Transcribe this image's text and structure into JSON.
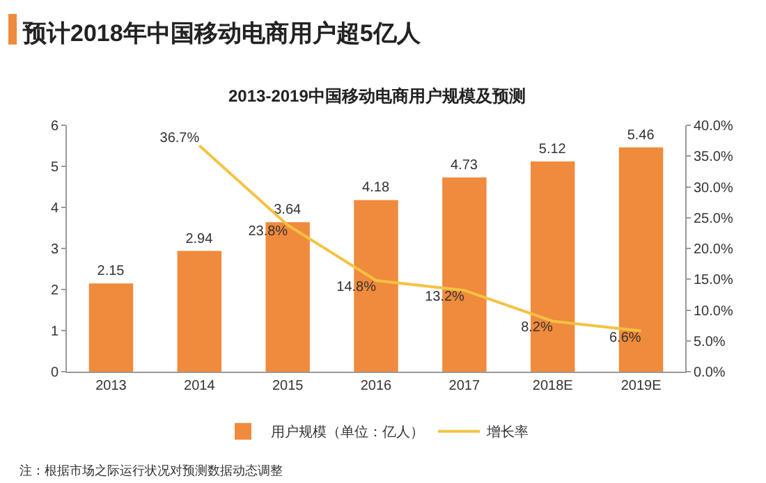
{
  "chart_data": {
    "type": "bar",
    "title": "预计2018年中国移动电商用户超5亿人",
    "subtitle": "2013-2019中国移动电商用户规模及预测",
    "categories": [
      "2013",
      "2014",
      "2015",
      "2016",
      "2017",
      "2018E",
      "2019E"
    ],
    "series": [
      {
        "name": "用户规模（单位：亿人）",
        "color": "#f08a3c",
        "values": [
          2.15,
          2.94,
          3.64,
          4.18,
          4.73,
          5.12,
          5.46
        ],
        "value_labels": [
          "2.15",
          "2.94",
          "3.64",
          "4.18",
          "4.73",
          "5.12",
          "5.46"
        ]
      },
      {
        "name": "增长率",
        "type": "line",
        "axis": "y2",
        "color": "#f5c242",
        "values": [
          null,
          36.7,
          23.8,
          14.8,
          13.2,
          8.2,
          6.6
        ],
        "value_labels": [
          null,
          "36.7%",
          "23.8%",
          "14.8%",
          "13.2%",
          "8.2%",
          "6.6%"
        ]
      }
    ],
    "ylim": [
      0,
      6
    ],
    "yticks": [
      0,
      1,
      2,
      3,
      4,
      5,
      6
    ],
    "y2lim": [
      0,
      40
    ],
    "y2ticks": [
      {
        "value": 0,
        "label": "0.0%"
      },
      {
        "value": 5,
        "label": "5.0%"
      },
      {
        "value": 10,
        "label": "10.0%"
      },
      {
        "value": 15,
        "label": "15.0%"
      },
      {
        "value": 20,
        "label": "20.0%"
      },
      {
        "value": 25,
        "label": "25.0%"
      },
      {
        "value": 30,
        "label": "30.0%"
      },
      {
        "value": 35,
        "label": "35.0%"
      },
      {
        "value": 40,
        "label": "40.0%"
      }
    ],
    "grid": false,
    "legend": "bottom",
    "marker": "none",
    "line_style": "solid",
    "annotations": [
      "注：根据市场之际运行状况对预测数据动态调整"
    ]
  }
}
